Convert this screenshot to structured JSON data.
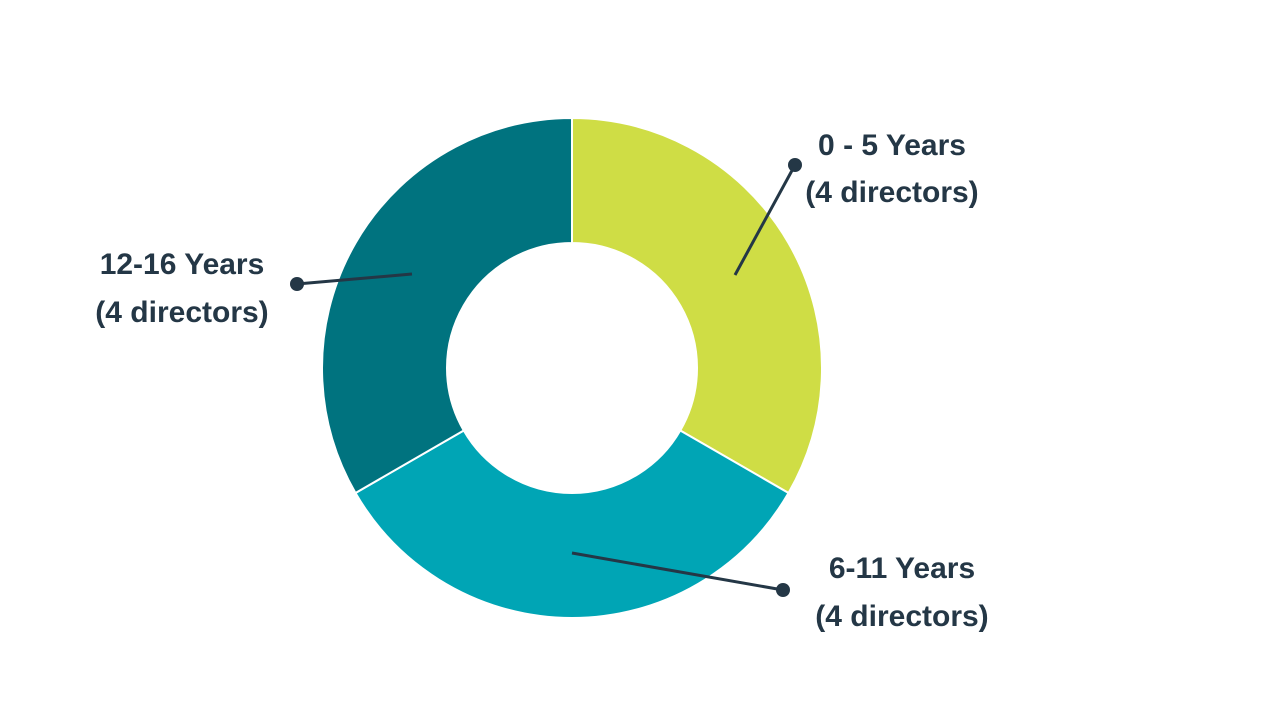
{
  "chart_data": {
    "type": "pie",
    "variant": "donut",
    "slices": [
      {
        "label": "0 - 5 Years",
        "sublabel": "(4 directors)",
        "value": 4,
        "color": "#cfdd45"
      },
      {
        "label": "6-11 Years",
        "sublabel": "(4 directors)",
        "value": 4,
        "color": "#00a5b5"
      },
      {
        "label": "12-16 Years",
        "sublabel": "(4 directors)",
        "value": 4,
        "color": "#00737f"
      }
    ],
    "legend": "none",
    "leader_color": "#243746"
  }
}
